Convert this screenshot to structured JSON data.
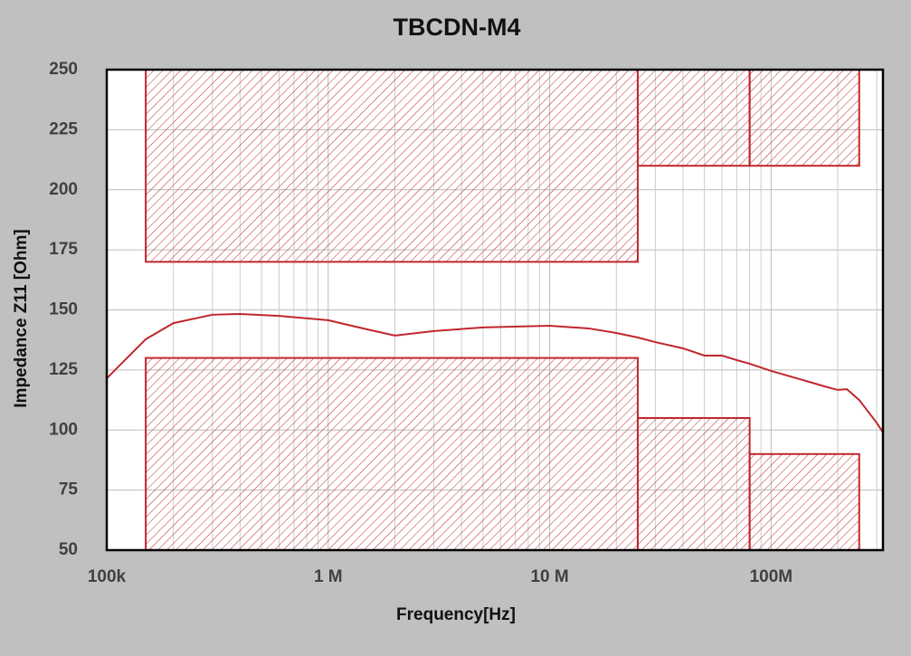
{
  "chart_data": {
    "type": "line",
    "title": "TBCDN-M4",
    "x_label": "Frequency[Hz]",
    "y_label": "Impedance Z11 [Ohm]",
    "xscale": "log",
    "grid": true,
    "color": "#c0272d",
    "xlim": [
      100000,
      320000000
    ],
    "ylim": [
      50,
      250
    ],
    "xticks": [
      {
        "value": 100000,
        "label": "100k"
      },
      {
        "value": 1000000,
        "label": "1  M"
      },
      {
        "value": 10000000,
        "label": "10 M"
      },
      {
        "value": 100000000,
        "label": "100M"
      }
    ],
    "xminorticks": [
      200000,
      300000,
      400000,
      500000,
      600000,
      700000,
      800000,
      900000,
      2000000,
      3000000,
      4000000,
      5000000,
      6000000,
      7000000,
      8000000,
      9000000,
      20000000,
      30000000,
      40000000,
      50000000,
      60000000,
      70000000,
      80000000,
      90000000,
      200000000,
      300000000
    ],
    "yticks": [
      50,
      75,
      100,
      125,
      150,
      175,
      200,
      225,
      250
    ],
    "x": [
      100000,
      150000,
      200000,
      300000,
      400000,
      600000,
      1000000,
      1500000,
      2000000,
      3000000,
      5000000,
      10000000,
      15000000,
      20000000,
      25000000,
      30000000,
      40000000,
      50000000,
      60000000,
      70000000,
      80000000,
      100000000,
      130000000,
      180000000,
      200000000,
      220000000,
      250000000,
      300000000,
      320000000
    ],
    "values": [
      121.5,
      137.8,
      144.5,
      148,
      148.3,
      147.5,
      145.7,
      141.9,
      139.3,
      141.2,
      142.7,
      143.4,
      142.3,
      140.4,
      138.5,
      136.6,
      134,
      131,
      131,
      129.1,
      127.6,
      124.6,
      121.6,
      117.8,
      116.7,
      117,
      112.5,
      103,
      99
    ],
    "zones": [
      {
        "x": [
          150000,
          25000000
        ],
        "y": [
          170,
          250
        ]
      },
      {
        "x": [
          25000000,
          80000000
        ],
        "y": [
          210,
          250
        ]
      },
      {
        "x": [
          80000000,
          250000000
        ],
        "y": [
          210,
          250
        ]
      },
      {
        "x": [
          150000,
          25000000
        ],
        "y": [
          50,
          130
        ]
      },
      {
        "x": [
          25000000,
          80000000
        ],
        "y": [
          50,
          105
        ]
      },
      {
        "x": [
          80000000,
          250000000
        ],
        "y": [
          50,
          90
        ]
      }
    ]
  }
}
